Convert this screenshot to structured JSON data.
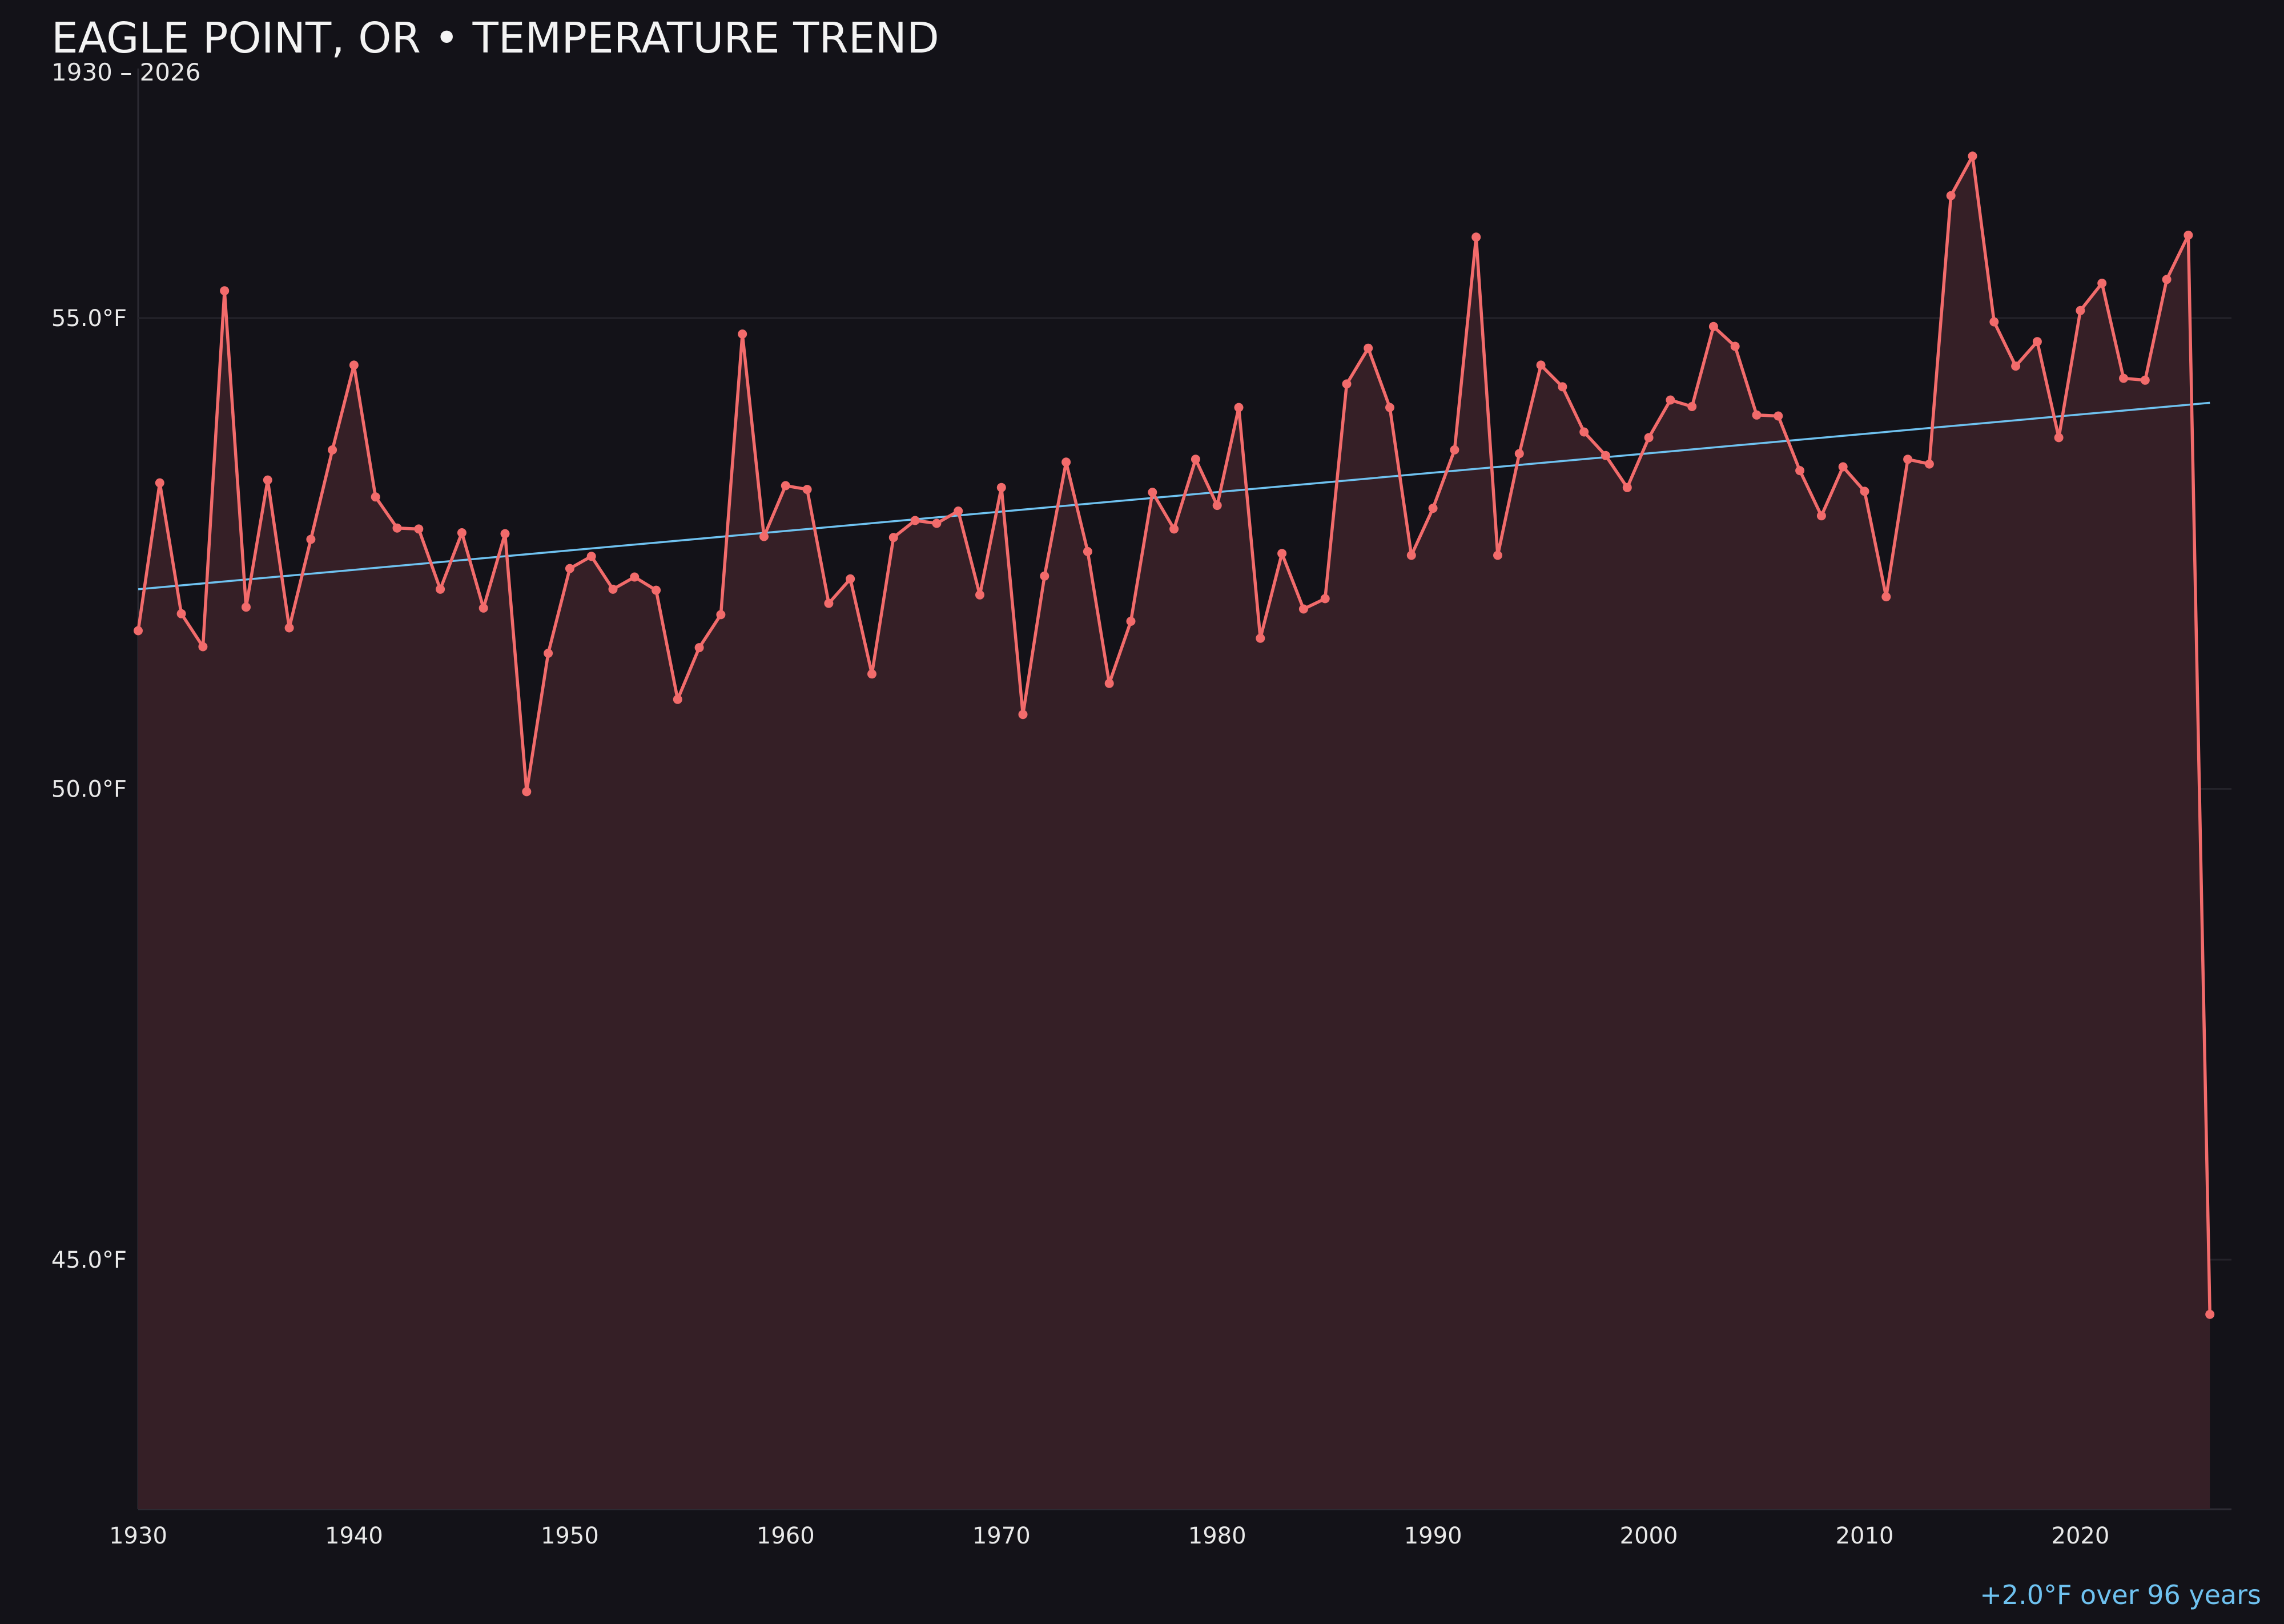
{
  "colors": {
    "background": "#131218",
    "series_line": "#f26b6b",
    "series_fill": "#351f26",
    "trend_line": "#6fc2f0",
    "gridline": "#24232a",
    "text": "#f2f2f2"
  },
  "chart_data": {
    "type": "area",
    "title": "EAGLE POINT, OR • TEMPERATURE TREND",
    "subtitle": "1930 – 2026",
    "xlabel": "",
    "ylabel": "",
    "xlim": [
      1930,
      2027
    ],
    "ylim": [
      42.35,
      57.65
    ],
    "x_ticks": [
      1930,
      1940,
      1950,
      1960,
      1970,
      1980,
      1990,
      2000,
      2010,
      2020
    ],
    "y_ticks": [
      {
        "value": 45.0,
        "label": "45.0°F"
      },
      {
        "value": 50.0,
        "label": "50.0°F"
      },
      {
        "value": 55.0,
        "label": "55.0°F"
      }
    ],
    "grid": "horizontal",
    "legend": "none",
    "annotation": "+2.0°F over 96 years",
    "trend": {
      "x": [
        1930,
        2026
      ],
      "y": [
        52.12,
        54.1
      ]
    },
    "series": [
      {
        "x": [
          1930,
          1931,
          1932,
          1933,
          1934,
          1935,
          1936,
          1937,
          1938,
          1939,
          1940,
          1941,
          1942,
          1943,
          1944,
          1945,
          1946,
          1947,
          1948,
          1949,
          1950,
          1951,
          1952,
          1953,
          1954,
          1955,
          1956,
          1957,
          1958,
          1959,
          1960,
          1961,
          1962,
          1963,
          1964,
          1965,
          1966,
          1967,
          1968,
          1969,
          1970,
          1971,
          1972,
          1973,
          1974,
          1975,
          1976,
          1977,
          1978,
          1979,
          1980,
          1981,
          1982,
          1983,
          1984,
          1985,
          1986,
          1987,
          1988,
          1989,
          1990,
          1991,
          1992,
          1993,
          1994,
          1995,
          1996,
          1997,
          1998,
          1999,
          2000,
          2001,
          2002,
          2003,
          2004,
          2005,
          2006,
          2007,
          2008,
          2009,
          2010,
          2011,
          2012,
          2013,
          2014,
          2015,
          2016,
          2017,
          2018,
          2019,
          2020,
          2021,
          2022,
          2023,
          2024,
          2025,
          2026
        ],
        "values": [
          51.68,
          53.25,
          51.86,
          51.51,
          55.29,
          51.93,
          53.28,
          51.71,
          52.65,
          53.6,
          54.5,
          53.1,
          52.77,
          52.76,
          52.12,
          52.72,
          51.92,
          52.71,
          49.97,
          51.44,
          52.34,
          52.47,
          52.12,
          52.25,
          52.11,
          50.95,
          51.5,
          51.85,
          54.83,
          52.68,
          53.22,
          53.18,
          51.97,
          52.23,
          51.22,
          52.67,
          52.85,
          52.82,
          52.95,
          52.06,
          53.2,
          50.79,
          52.26,
          53.47,
          52.52,
          51.12,
          51.78,
          53.15,
          52.76,
          53.5,
          53.01,
          54.05,
          51.6,
          52.5,
          51.91,
          52.02,
          54.3,
          54.68,
          54.05,
          52.48,
          52.98,
          53.6,
          55.86,
          52.48,
          53.56,
          54.5,
          54.27,
          53.79,
          53.54,
          53.2,
          53.73,
          54.13,
          54.06,
          54.91,
          54.7,
          53.97,
          53.96,
          53.38,
          52.9,
          53.42,
          53.16,
          52.04,
          53.5,
          53.45,
          56.3,
          56.72,
          54.96,
          54.49,
          54.75,
          53.73,
          55.08,
          55.37,
          54.36,
          54.34,
          55.41,
          55.88,
          44.42
        ]
      }
    ]
  }
}
